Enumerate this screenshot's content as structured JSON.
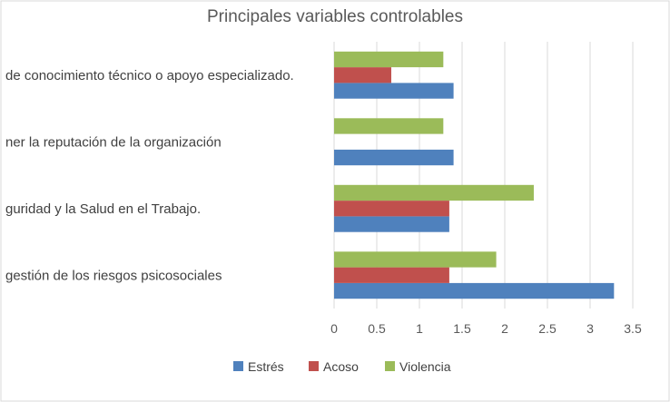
{
  "chart_data": {
    "type": "bar",
    "orientation": "horizontal",
    "title": "Principales variables controlables",
    "categories": [
      "gestión de los riesgos psicosociales",
      "guridad y la Salud en el Trabajo.",
      "ner la reputación de la organización",
      "de conocimiento técnico o apoyo especializado."
    ],
    "series": [
      {
        "name": "Estrés",
        "color": "#4f81bd",
        "values": [
          3.28,
          1.35,
          1.4,
          1.4
        ]
      },
      {
        "name": "Acoso",
        "color": "#c0504d",
        "values": [
          1.35,
          1.35,
          0,
          0.67
        ]
      },
      {
        "name": "Violencia",
        "color": "#9bbb59",
        "values": [
          1.9,
          2.34,
          1.28,
          1.28
        ]
      }
    ],
    "xlim": [
      0,
      3.5
    ],
    "ticks": [
      "0",
      "0.5",
      "1",
      "1.5",
      "2",
      "2.5",
      "3",
      "3.5"
    ],
    "grid": true,
    "legend_position": "bottom"
  }
}
